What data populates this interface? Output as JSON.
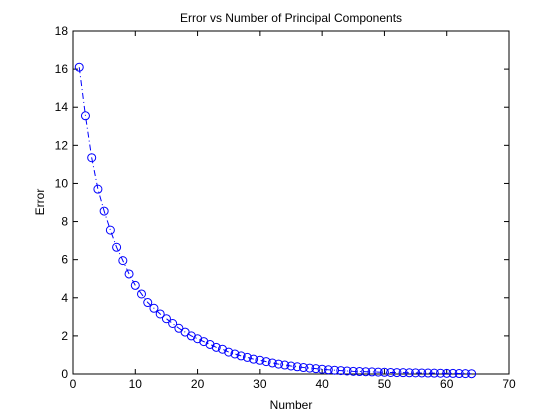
{
  "chart_data": {
    "type": "line",
    "title": "Error vs Number of Principal Components",
    "xlabel": "Number",
    "ylabel": "Error",
    "xlim": [
      0,
      70
    ],
    "ylim": [
      0,
      18
    ],
    "xticks": [
      0,
      10,
      20,
      30,
      40,
      50,
      60,
      70
    ],
    "yticks": [
      0,
      2,
      4,
      6,
      8,
      10,
      12,
      14,
      16,
      18
    ],
    "xtick_labels": [
      "0",
      "10",
      "20",
      "30",
      "40",
      "50",
      "60",
      "70"
    ],
    "ytick_labels": [
      "0",
      "2",
      "4",
      "6",
      "8",
      "10",
      "12",
      "14",
      "16",
      "18"
    ],
    "grid": false,
    "legend": "none",
    "series": [
      {
        "color": "#0000ff",
        "line_style": "dash-dot",
        "marker": "circle",
        "x": [
          1,
          2,
          3,
          4,
          5,
          6,
          7,
          8,
          9,
          10,
          11,
          12,
          13,
          14,
          15,
          16,
          17,
          18,
          19,
          20,
          21,
          22,
          23,
          24,
          25,
          26,
          27,
          28,
          29,
          30,
          31,
          32,
          33,
          34,
          35,
          36,
          37,
          38,
          39,
          40,
          41,
          42,
          43,
          44,
          45,
          46,
          47,
          48,
          49,
          50,
          51,
          52,
          53,
          54,
          55,
          56,
          57,
          58,
          59,
          60,
          61,
          62,
          63,
          64
        ],
        "y": [
          16.1,
          13.55,
          11.35,
          9.7,
          8.55,
          7.55,
          6.65,
          5.95,
          5.25,
          4.65,
          4.2,
          3.75,
          3.45,
          3.15,
          2.9,
          2.65,
          2.4,
          2.2,
          2.0,
          1.85,
          1.7,
          1.55,
          1.4,
          1.3,
          1.15,
          1.05,
          0.95,
          0.87,
          0.78,
          0.72,
          0.65,
          0.58,
          0.52,
          0.47,
          0.42,
          0.38,
          0.34,
          0.31,
          0.28,
          0.25,
          0.22,
          0.2,
          0.18,
          0.16,
          0.14,
          0.13,
          0.12,
          0.11,
          0.1,
          0.09,
          0.08,
          0.075,
          0.07,
          0.065,
          0.06,
          0.055,
          0.05,
          0.045,
          0.04,
          0.035,
          0.03,
          0.025,
          0.02,
          0.015
        ]
      }
    ]
  }
}
